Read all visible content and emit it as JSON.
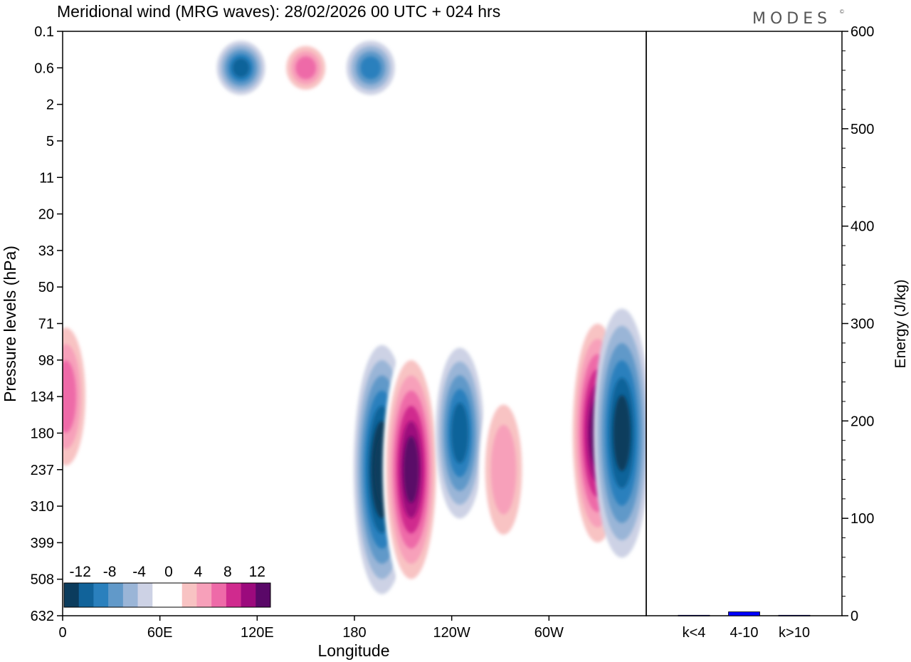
{
  "chart_data": [
    {
      "type": "heatmap",
      "title": "Meridional wind (MRG waves):  28/02/2026  00 UTC  + 024 hrs",
      "brand": "MODES",
      "brand_mark": "©",
      "xlabel": "Longitude",
      "ylabel": "Pressure levels (hPa)",
      "x_ticks": [
        "0",
        "60E",
        "120E",
        "180",
        "120W",
        "60W"
      ],
      "y_ticks": [
        "0.1",
        "0.6",
        "2",
        "5",
        "11",
        "20",
        "33",
        "50",
        "71",
        "98",
        "134",
        "180",
        "237",
        "310",
        "399",
        "508",
        "632"
      ],
      "colorbar": {
        "labels": [
          "-12",
          "-8",
          "-4",
          "0",
          "4",
          "8",
          "12"
        ],
        "levels": [
          -14,
          -12,
          -10,
          -8,
          -6,
          -4,
          -2,
          2,
          4,
          6,
          8,
          10,
          12,
          14
        ],
        "colors": [
          "#0b3c5d",
          "#11639a",
          "#2a80bd",
          "#6199c9",
          "#9ab5d7",
          "#cdd2e5",
          "#ffffff",
          "#ffffff",
          "#f8c3c3",
          "#f7a0ba",
          "#ee6aa8",
          "#d02a8e",
          "#9c0a7d",
          "#5a0868"
        ]
      },
      "features": [
        {
          "lon": 197,
          "level": "237",
          "value": -15
        },
        {
          "lon": 215,
          "level": "237",
          "value": 15
        },
        {
          "lon": 245,
          "level": "180",
          "value": -11
        },
        {
          "lon": 272,
          "level": "237",
          "value": 7
        },
        {
          "lon": 330,
          "level": "180",
          "value": 15
        },
        {
          "lon": 345,
          "level": "180",
          "value": -13
        },
        {
          "lon": 2,
          "level": "134",
          "value": 9
        },
        {
          "lon": 110,
          "level": "0.6",
          "value": -11
        },
        {
          "lon": 190,
          "level": "0.6",
          "value": -9
        },
        {
          "lon": 150,
          "level": "0.6",
          "value": 9
        }
      ]
    },
    {
      "type": "bar",
      "ylabel": "Energy (J/kg)",
      "ylim": [
        0,
        600
      ],
      "y_ticks": [
        "0",
        "100",
        "200",
        "300",
        "400",
        "500",
        "600"
      ],
      "categories": [
        "k<4",
        "4-10",
        "k>10"
      ],
      "values": [
        0.5,
        4,
        0.5
      ],
      "bar_color": "#0000ff"
    }
  ]
}
